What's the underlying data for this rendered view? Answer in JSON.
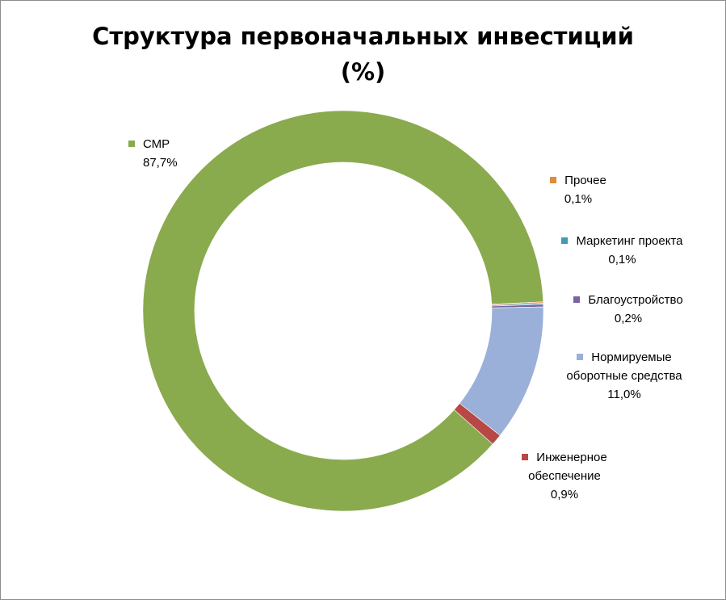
{
  "chart_data": {
    "type": "pie",
    "variant": "doughnut",
    "title": "Структура первоначальных инвестиций",
    "subtitle": "(%)",
    "legend": "none",
    "slices": [
      {
        "label": "СМР",
        "value": 87.7,
        "value_text": "87,7%",
        "color": "#8AAA4E"
      },
      {
        "label": "Прочее",
        "value": 0.1,
        "value_text": "0,1%",
        "color": "#E08A3C"
      },
      {
        "label": "Маркетинг проекта",
        "value": 0.1,
        "value_text": "0,1%",
        "color": "#3E9BB1"
      },
      {
        "label": "Благоустройство",
        "value": 0.2,
        "value_text": "0,2%",
        "color": "#7B62A0"
      },
      {
        "label": "Нормируемые оборотные средства",
        "label_lines": [
          "Нормируемые",
          "оборотные средства"
        ],
        "value": 11.0,
        "value_text": "11,0%",
        "color": "#9AB0D8"
      },
      {
        "label": "Инженерное обеспечение",
        "label_lines": [
          "Инженерное",
          "обеспечение"
        ],
        "value": 0.9,
        "value_text": "0,9%",
        "color": "#B84845"
      }
    ]
  }
}
